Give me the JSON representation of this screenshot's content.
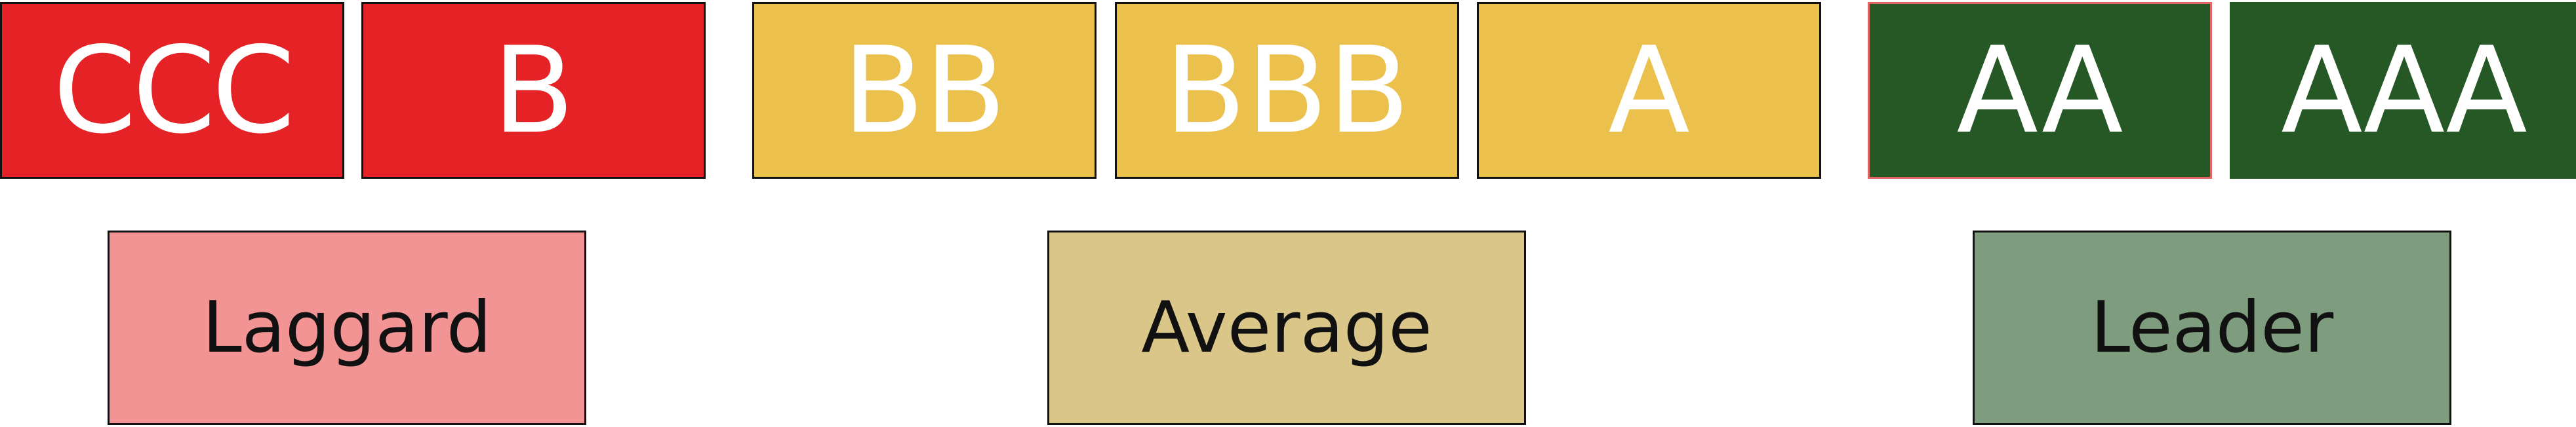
{
  "ratings": [
    {
      "label": "CCC",
      "color": "#E52225"
    },
    {
      "label": "B",
      "color": "#E52225"
    },
    {
      "label": "BB",
      "color": "#EBC04C"
    },
    {
      "label": "BBB",
      "color": "#EBC04C"
    },
    {
      "label": "A",
      "color": "#EBC04C"
    },
    {
      "label": "AA",
      "color": "#265826"
    },
    {
      "label": "AAA",
      "color": "#265826"
    }
  ],
  "groups": [
    {
      "label": "Laggard",
      "color": "#F39494"
    },
    {
      "label": "Average",
      "color": "#DBC68A"
    },
    {
      "label": "Leader",
      "color": "#7E9D7E"
    }
  ]
}
